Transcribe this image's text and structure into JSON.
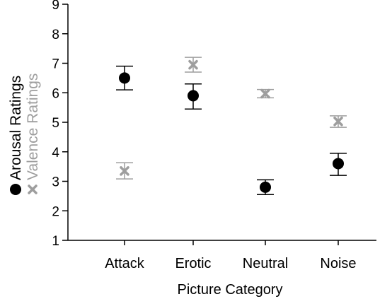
{
  "chart_data": {
    "type": "scatter",
    "categories": [
      "Attack",
      "Erotic",
      "Neutral",
      "Noise"
    ],
    "xlabel": "Picture Category",
    "ylabel": "",
    "ylim": [
      1,
      9
    ],
    "yticks": [
      1,
      2,
      3,
      4,
      5,
      6,
      7,
      8,
      9
    ],
    "grid": false,
    "legend": {
      "placement": "left-vertical",
      "entries": [
        {
          "marker": "●",
          "label": "Arousal Ratings",
          "color": "#000000"
        },
        {
          "marker": "✖",
          "label": "Valence Ratings",
          "color": "#9e9e9e"
        }
      ]
    },
    "series": [
      {
        "name": "Arousal Ratings",
        "marker": "circle",
        "color": "#000000",
        "values": [
          6.5,
          5.9,
          2.8,
          3.6
        ],
        "error_low": [
          6.1,
          5.45,
          2.55,
          3.2
        ],
        "error_high": [
          6.9,
          6.3,
          3.05,
          3.95
        ]
      },
      {
        "name": "Valence Ratings",
        "marker": "x",
        "color": "#9e9e9e",
        "values": [
          3.35,
          6.95,
          5.97,
          5.03
        ],
        "error_low": [
          3.08,
          6.7,
          5.83,
          4.83
        ],
        "error_high": [
          3.63,
          7.2,
          6.11,
          5.22
        ]
      }
    ]
  }
}
